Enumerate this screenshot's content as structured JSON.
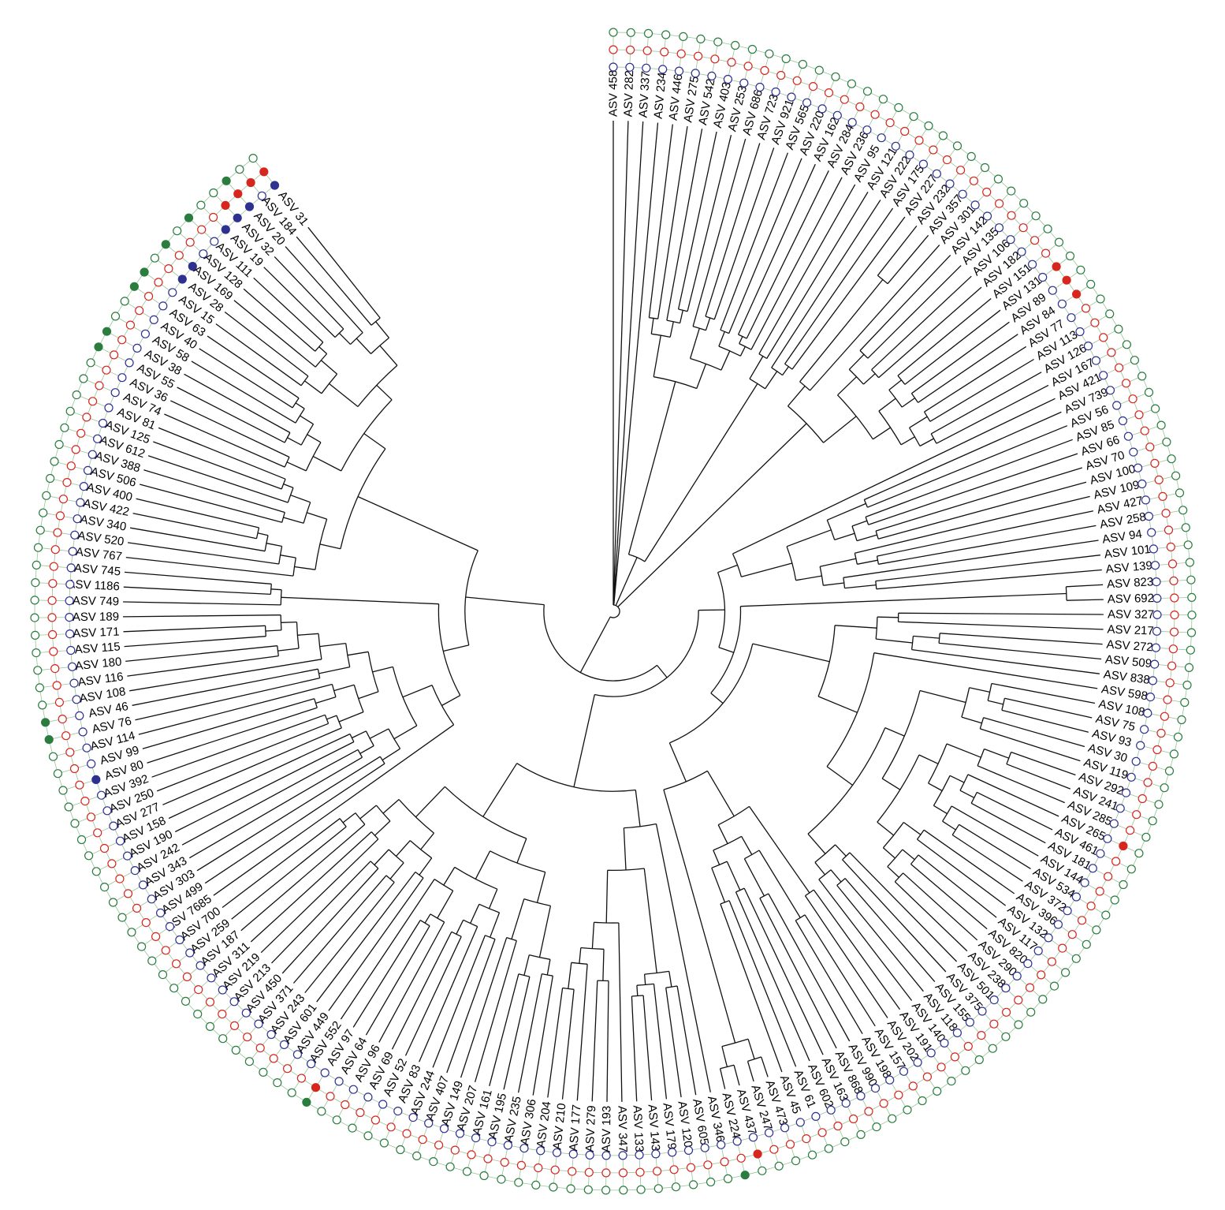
{
  "tips": [
    "ASV 458",
    "ASV 282",
    "ASV 337",
    "ASV 234",
    "ASV 446",
    "ASV 275",
    "ASV 542",
    "ASV 403",
    "ASV 253",
    "ASV 686",
    "ASV 723",
    "ASV 921",
    "ASV 565",
    "ASV 220",
    "ASV 162",
    "ASV 284",
    "ASV 236",
    "ASV 95",
    "ASV 121",
    "ASV 222",
    "ASV 175",
    "ASV 227",
    "ASV 232",
    "ASV 357",
    "ASV 301",
    "ASV 142",
    "ASV 135",
    "ASV 106",
    "ASV 182",
    "ASV 151",
    "ASV 131",
    "ASV 89",
    "ASV 84",
    "ASV 77",
    "ASV 113",
    "ASV 126",
    "ASV 167",
    "ASV 421",
    "ASV 739",
    "ASV 56",
    "ASV 85",
    "ASV 66",
    "ASV 70",
    "ASV 100",
    "ASV 109",
    "ASV 427",
    "ASV 258",
    "ASV 94",
    "ASV 101",
    "ASV 139",
    "ASV 823",
    "ASV 692",
    "ASV 327",
    "ASV 217",
    "ASV 272",
    "ASV 509",
    "ASV 838",
    "ASV 598",
    "ASV 1089",
    "ASV 75",
    "ASV 93",
    "ASV 30",
    "ASV 119",
    "ASV 292",
    "ASV 241",
    "ASV 285",
    "ASV 265",
    "ASV 461",
    "ASV 181",
    "ASV 144",
    "ASV 534",
    "ASV 372",
    "ASV 396",
    "ASV 132",
    "ASV 117",
    "ASV 820",
    "ASV 290",
    "ASV 238",
    "ASV 501",
    "ASV 375",
    "ASV 155",
    "ASV 118",
    "ASV 140",
    "ASV 191",
    "ASV 202",
    "ASV 157",
    "ASV 198",
    "ASV 990",
    "ASV 868",
    "ASV 163",
    "ASV 602",
    "ASV 61",
    "ASV 45",
    "ASV 473",
    "ASV 247",
    "ASV 437",
    "ASV 224",
    "ASV 346",
    "ASV 605",
    "ASV 120",
    "ASV 179",
    "ASV 143",
    "ASV 133",
    "ASV 347",
    "ASV 193",
    "ASV 279",
    "ASV 177",
    "ASV 210",
    "ASV 204",
    "ASV 306",
    "ASV 235",
    "ASV 195",
    "ASV 161",
    "ASV 207",
    "ASV 149",
    "ASV 407",
    "ASV 244",
    "ASV 83",
    "ASV 52",
    "ASV 69",
    "ASV 96",
    "ASV 64",
    "ASV 97",
    "ASV 552",
    "ASV 449",
    "ASV 601",
    "ASV 243",
    "ASV 371",
    "ASV 450",
    "ASV 213",
    "ASV 219",
    "ASV 311",
    "ASV 187",
    "ASV 259",
    "ASV 700",
    "ASV 7685",
    "ASV 499",
    "ASV 303",
    "ASV 343",
    "ASV 242",
    "ASV 190",
    "ASV 158",
    "ASV 277",
    "ASV 250",
    "ASV 392",
    "ASV 80",
    "ASV 99",
    "ASV 114",
    "ASV 76",
    "ASV 46",
    "ASV 108",
    "ASV 116",
    "ASV 180",
    "ASV 115",
    "ASV 171",
    "ASV 189",
    "ASV 749",
    "ASV 1186",
    "ASV 745",
    "ASV 767",
    "ASV 520",
    "ASV 340",
    "ASV 422",
    "ASV 400",
    "ASV 506",
    "ASV 388",
    "ASV 612",
    "ASV 125",
    "ASV 81",
    "ASV 74",
    "ASV 36",
    "ASV 55",
    "ASV 38",
    "ASV 58",
    "ASV 40",
    "ASV 63",
    "ASV 15",
    "ASV 28",
    "ASV 169",
    "ASV 128",
    "ASV 111",
    "ASV 19",
    "ASV 32",
    "ASV 20",
    "ASV 184",
    "ASV 31"
  ],
  "tree_newick": "(ASV 458:2.00,ASV 282:2.50,ASV 337:3.00,ASV 234:4.50,((((ASV 446:0.80,ASV 275:0.40)2:0.30,(ASV 542:0.15,(ASV 403:0.20,ASV 253:0.20)1:0.25)2:0.30)1:0.80,((ASV 686:0.20,(ASV 723:0.10,ASV 921:0.10)1:0.25)2:0.60,((ASV 565:0.15,ASV 220:0.15)1:0.30,((ASV 162:0.20,ASV 284:0.15)2:0.15,ASV 236:0.35)1:0.20)1:0.40)1:0.50)1:3.40,((ASV 95:0.20,ASV 121:0.20)1:0.50,(ASV 222:0.30,(ASV 175:0.10,ASV 227:0.10)1:0.20)2:0.40)1:4.00)1:1.00,(((ASV 232:0.30,ASV 357:0.30)1:2.50,ASV 301:2.60)2:0.50,(((ASV 142:0.20,ASV 135:0.20)1:0.40,(ASV 106:0.30,ASV 182:0.20)2:0.30)1:0.50,(((ASV 151:0.20,ASV 131:0.20)1:0.30,(ASV 89:0.15,ASV 84:0.15)1:0.30)1:0.40,((ASV 77:0.10,ASV 113:0.10)1:0.40,(ASV 126:0.20,ASV 167:0.20)1:0.30)1:0.30)1:0.40)2:0.80)1:5.00,((((ASV 421:3.40,(((ASV 739:0.20,ASV 56:0.20)1:0.80,((ASV 85:0.50,ASV 66:0.40)1:0.30,(ASV 70:0.30,ASV 100:0.30)1:0.40)1:0.40)1:0.90,((ASV 109:0.80,(ASV 427:0.30,ASV 258:0.20)2:0.40)1:0.70,(ASV 94:1.00,(ASV 101:0.10,ASV 139:0.10)2:0.60)1:0.40)1:0.50)1:1.00)1:0.40,((ASV 823:0.20,ASV 692:0.20)1:6.20,((((ASV 327:0.20,ASV 217:0.20)1:0.40,((ASV 272:0.30,ASV 509:0.30)1:0.50,ASV 838:0.60)1:0.70)2:0.80,(ASV 598:4.20,((((ASV 1089:0.30,(ASV 75:0.20,ASV 93:0.20)2:0.30)2:0.40,(ASV 30:0.20,ASV 119:0.20)2:0.40)2:0.90,((((ASV 292:0.20,ASV 241:0.20)1:0.50,ASV 285:0.60)1:0.70,((ASV 265:0.20,(ASV 461:0.20,ASV 181:0.20)1:0.30)1:0.30,(ASV 144:0.20,(ASV 534:0.20,ASV 372:0.20)1:0.30)2:0.30)1:0.30)2:0.40,((ASV 396:0.20,ASV 132:0.20)2:0.40,((ASV 117:0.20,ASV 820:0.20)1:0.30,(ASV 290:0.20,ASV 238:0.20)1:0.30)2:0.30)2:0.40)1:0.40)1:0.40,((ASV 501:0.20,ASV 375:0.20)1:0.30,((ASV 155:0.20,ASV 118:0.20)1:0.30,ASV 140:0.40)1:0.30)2:0.50)1:0.60)1:0.80)1:1.50,(((ASV 191:0.20,ASV 202:0.20)2:2.00,(((ASV 157:0.20,ASV 198:0.20)2:1.50,(ASV 990:0.40,ASV 868:0.30)1:0.80)2:0.40,((ASV 163:0.60,ASV 602:0.40)1:0.60,(ASV 61:0.30,ASV 45:0.30)2:0.70)2:0.30)1:0.40)1:1.00,((ASV 473:0.40,ASV 247:0.40)1:0.40,(ASV 437:0.40,ASV 224:0.40)1:0.40)2:5.00)1:0.80)1:0.30)1:0.30)1:0.50,((ASV 346:4.50,(((ASV 605:0.30,ASV 120:0.30)1:0.30,(ASV 179:0.20,(ASV 143:0.20,ASV 133:0.20)2:0.20)2:0.20)1:2.00,(ASV 347:2.50,((ASV 193:0.50,ASV 279:0.50)1:0.60,(ASV 177:0.60,(ASV 210:0.30,ASV 204:0.30)1:0.50)1:0.30)1:0.50)1:1.00)1:0.80)1:0.70,(((((ASV 306:0.40,ASV 235:0.40)1:0.30,(ASV 195:0.30,ASV 161:0.30)1:0.40)1:1.00,(ASV 207:0.80,ASV 149:0.80)1:0.80)1:0.60,(((ASV 407:0.40,ASV 244:0.40)1:0.50,(ASV 83:0.40,(ASV 52:0.20,ASV 69:0.20)1:0.30)1:0.40)1:0.40,((ASV 96:0.30,(ASV 64:0.20,ASV 97:0.20)1:0.20)2:0.60,ASV 552:1.20)1:0.40)1:0.60)1:0.50,(((ASV 449:0.40,ASV 601:0.40)1:0.40,((ASV 243:0.30,ASV 371:0.30)1:0.40,(ASV 450:0.30,ASV 213:0.30)1:0.40)1:0.40)2:0.40,((ASV 219:0.30,ASV 311:0.30)2:0.40,(ASV 187:0.30,(ASV 259:0.20,ASV 700:0.20)1:0.30)1:0.40)1:0.40)2:0.80)1:1.20)1:1.80)1:0.30,(((ASV 7685:3.00,(((ASV 499:0.30,ASV 303:0.30)1:0.40,((ASV 343:0.30,ASV 242:0.30)2:0.30,(ASV 190:0.30,ASV 158:0.30)2:0.30)1:0.40)1:0.50,(((ASV 277:0.30,(ASV 250:0.20,ASV 392:0.20)2:0.20)1:0.50,((ASV 80:0.20,ASV 99:0.20)1:0.40,ASV 114:0.40)1:0.40)1:0.40,((ASV 76:0.30,ASV 46:0.30)1:0.60,(ASV 108:0.90,((ASV 116:0.20,ASV 180:0.20)1:0.40,((ASV 115:0.30,ASV 171:0.30)2:0.30,ASV 189:0.40)1:0.30)1:0.40)1:0.50)1:0.40)1:0.40)2:0.60)1:0.40,(ASV 749:0.20,(ASV 1186:0.10,ASV 745:0.10)1:0.20)2:3.00)1:0.50,(((ASV 767:0.50,(ASV 520:0.40,(ASV 340:0.30,(ASV 422:0.20,ASV 400:0.20)1:0.20)1:0.30)1:0.30)1:0.40,((ASV 506:0.30,ASV 388:0.30)2:0.40,(ASV 612:0.30,(ASV 125:0.20,ASV 81:0.20)1:0.20)1:0.40)2:0.40)1:0.40,(((ASV 74:0.20,ASV 36:0.20)1:0.40,((ASV 55:0.20,ASV 38:0.20)1:0.30,(ASV 58:0.20,(ASV 40:0.10,ASV 63:0.10)1:0.20)1:0.30)1:0.30)2:0.60,(((ASV 15:0.20,ASV 28:0.20)1:0.40,(ASV 169:0.30,(ASV 128:0.20,ASV 111:0.20)1:0.20)1:0.40)1:0.70,(((ASV 19:0.20,ASV 32:0.20)2:0.30,ASV 20:0.40)1:0.40,(ASV 184:0.20,ASV 31:0.20)1:0.40)1:0.50)1:0.40)1:0.50)1:2.50)1:1.50)1:1.20)1:0.20)1:0.30);",
  "tree_style": {
    "root_angle_deg": -90,
    "arc_span_deg": 321.5,
    "line_color": "#111111"
  },
  "rings": [
    {
      "name": "blue",
      "color": "#2e3190",
      "filled": [
        "ASV 80",
        "ASV 28",
        "ASV 169",
        "ASV 19",
        "ASV 32",
        "ASV 20",
        "ASV 31"
      ]
    },
    {
      "name": "red",
      "color": "#d7261e",
      "filled": [
        "ASV 131",
        "ASV 89",
        "ASV 84",
        "ASV 265",
        "ASV 437",
        "ASV 97",
        "ASV 32",
        "ASV 20",
        "ASV 184",
        "ASV 31"
      ]
    },
    {
      "name": "green",
      "color": "#2a7d3e",
      "filled": [
        "ASV 224",
        "ASV 97",
        "ASV 46",
        "ASV 76",
        "ASV 38",
        "ASV 55",
        "ASV 63",
        "ASV 15",
        "ASV 169",
        "ASV 111",
        "ASV 20"
      ]
    }
  ],
  "ring_link_color": "#9ac49a"
}
